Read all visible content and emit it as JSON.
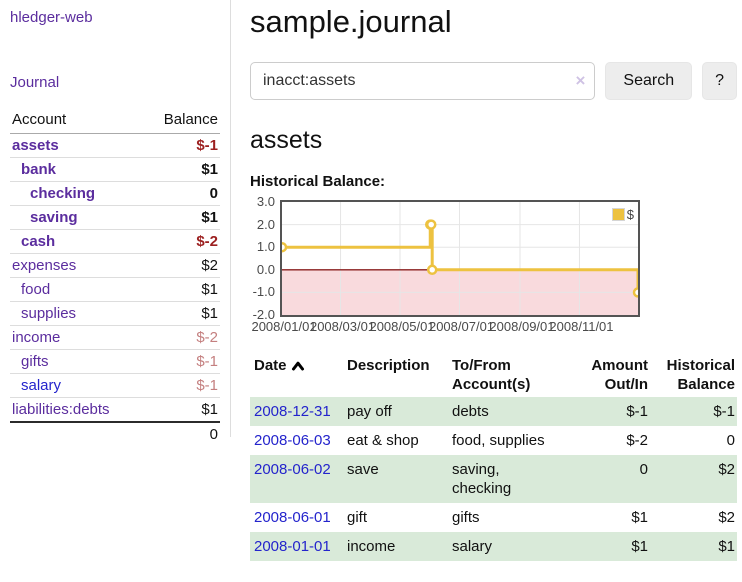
{
  "app": {
    "brand": "hledger-web",
    "nav_journal": "Journal"
  },
  "sidebar": {
    "header": {
      "account": "Account",
      "balance": "Balance"
    },
    "accounts": [
      {
        "name": "assets",
        "depth": 1,
        "balance": "$-1",
        "bold": true,
        "neg": "strong"
      },
      {
        "name": "bank",
        "depth": 2,
        "balance": "$1",
        "bold": true
      },
      {
        "name": "checking",
        "depth": 3,
        "balance": "0",
        "bold": true
      },
      {
        "name": "saving",
        "depth": 3,
        "balance": "$1",
        "bold": true
      },
      {
        "name": "cash",
        "depth": 2,
        "balance": "$-2",
        "bold": true,
        "neg": "strong"
      },
      {
        "name": "expenses",
        "depth": 1,
        "balance": "$2"
      },
      {
        "name": "food",
        "depth": 2,
        "balance": "$1"
      },
      {
        "name": "supplies",
        "depth": 2,
        "balance": "$1"
      },
      {
        "name": "income",
        "depth": 1,
        "balance": "$-2",
        "neg": "soft"
      },
      {
        "name": "gifts",
        "depth": 2,
        "balance": "$-1",
        "neg": "soft"
      },
      {
        "name": "salary",
        "depth": 2,
        "balance": "$-1",
        "neg": "soft",
        "link": "blue"
      },
      {
        "name": "liabilities:debts",
        "depth": 1,
        "balance": "$1"
      }
    ],
    "total": "0"
  },
  "header": {
    "title": "sample.journal"
  },
  "search": {
    "value": "inacct:assets",
    "clear_icon": "×",
    "button": "Search",
    "help_button": "?"
  },
  "account_page": {
    "heading": "assets",
    "chart_label": "Historical Balance:"
  },
  "chart_data": {
    "type": "line",
    "title": "Historical Balance",
    "step": true,
    "grid": true,
    "x_range": [
      "2008-01-01",
      "2008-12-31"
    ],
    "ylim": [
      -2.0,
      3.0
    ],
    "y_ticks": [
      "3.0",
      "2.0",
      "1.0",
      "0.0",
      "-1.0",
      "-2.0"
    ],
    "x_ticks": [
      {
        "label": "2008/01/01",
        "date": "2008-01-01"
      },
      {
        "label": "2008/03/01",
        "date": "2008-03-01"
      },
      {
        "label": "2008/05/01",
        "date": "2008-05-01"
      },
      {
        "label": "2008/07/01",
        "date": "2008-07-01"
      },
      {
        "label": "2008/09/01",
        "date": "2008-09-01"
      },
      {
        "label": "2008/11/01",
        "date": "2008-11-01"
      }
    ],
    "series": [
      {
        "name": "$",
        "color": "#edc240",
        "points": [
          {
            "date": "2008-01-01",
            "value": 1.0
          },
          {
            "date": "2008-06-01",
            "value": 2.0
          },
          {
            "date": "2008-06-02",
            "value": 2.0
          },
          {
            "date": "2008-06-03",
            "value": 0.0
          },
          {
            "date": "2008-12-31",
            "value": -1.0
          }
        ]
      }
    ],
    "legend": {
      "label": "$",
      "position": "top-right"
    },
    "negative_region_color": "#f9dadd",
    "zero_line_color": "#8b2020",
    "gridline_color": "#e6e6e6",
    "border_color": "#545454"
  },
  "register": {
    "columns": [
      {
        "line1": "Date",
        "line2": "",
        "align": "left",
        "sortable": true
      },
      {
        "line1": "Description",
        "line2": "",
        "align": "left"
      },
      {
        "line1": "To/From",
        "line2": "Account(s)",
        "align": "left"
      },
      {
        "line1": "Amount",
        "line2": "Out/In",
        "align": "right"
      },
      {
        "line1": "Historical",
        "line2": "Balance",
        "align": "right"
      }
    ],
    "rows": [
      {
        "date": "2008-12-31",
        "description": "pay off",
        "accounts": "debts",
        "amount": "$-1",
        "amount_neg": true,
        "balance": "$-1",
        "balance_neg": true,
        "shaded": true
      },
      {
        "date": "2008-06-03",
        "description": "eat & shop",
        "accounts": "food, supplies",
        "amount": "$-2",
        "amount_neg": true,
        "balance": "0",
        "balance_neg": false,
        "shaded": false
      },
      {
        "date": "2008-06-02",
        "description": "save",
        "accounts": "saving, checking",
        "amount": "0",
        "amount_neg": false,
        "balance": "$2",
        "balance_neg": false,
        "shaded": true
      },
      {
        "date": "2008-06-01",
        "description": "gift",
        "accounts": "gifts",
        "amount": "$1",
        "amount_neg": false,
        "balance": "$2",
        "balance_neg": false,
        "shaded": false
      },
      {
        "date": "2008-01-01",
        "description": "income",
        "accounts": "salary",
        "amount": "$1",
        "amount_neg": false,
        "balance": "$1",
        "balance_neg": false,
        "shaded": true
      }
    ]
  },
  "colors": {
    "link_purple": "#5b2d9e",
    "link_blue": "#2424cc",
    "neg_strong": "#9c1f1f",
    "neg_soft": "#c47f7f",
    "row_green": "#d9ead9",
    "chart_line": "#edc240"
  }
}
